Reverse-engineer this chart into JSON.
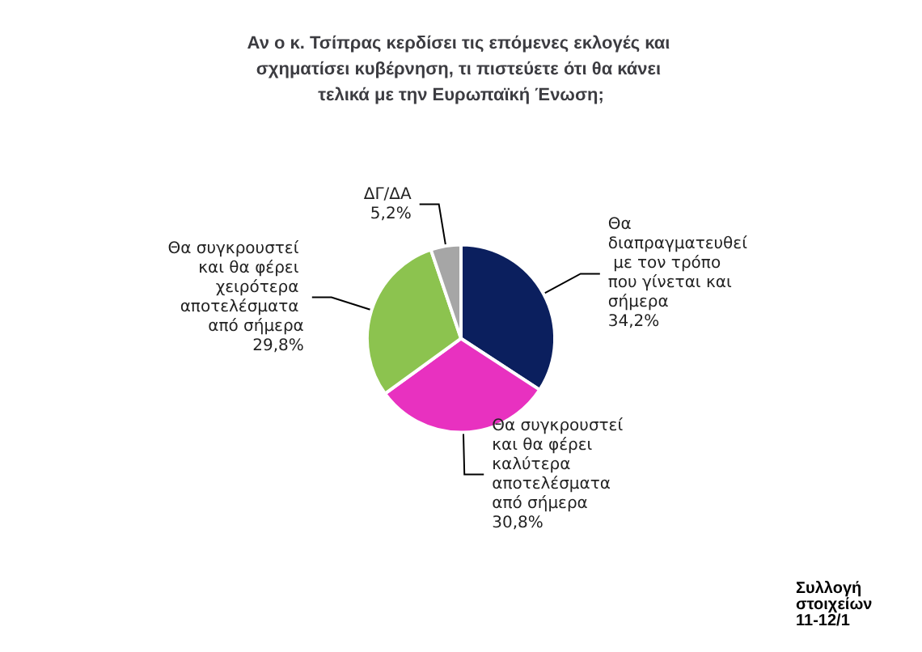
{
  "chart_data": {
    "type": "pie",
    "title": "Αν ο κ. Τσίπρας κερδίσει τις επόμενες εκλογές και σχηματίσει κυβέρνηση, τι πιστεύετε ότι θα κάνει τελικά με την Ευρωπαϊκή Ένωση;",
    "categories": [
      "Θα διαπραγματευθεί με τον τρόπο που γίνεται και σήμερα",
      "Θα συγκρουστεί και θα φέρει καλύτερα αποτελέσματα από σήμερα",
      "Θα συγκρουστεί και θα φέρει χειρότερα αποτελέσματα από σήμερα",
      "ΔΓ/ΔΑ"
    ],
    "values": [
      34.2,
      30.8,
      29.8,
      5.2
    ],
    "value_labels": [
      "34,2%",
      "30,8%",
      "29,8%",
      "5,2%"
    ],
    "colors": [
      "#0b1f5e",
      "#e831c0",
      "#8cc34f",
      "#a6a6a6"
    ],
    "annotations": [
      "Συλλογή στοιχείων 11-12/1"
    ],
    "legend": false
  }
}
